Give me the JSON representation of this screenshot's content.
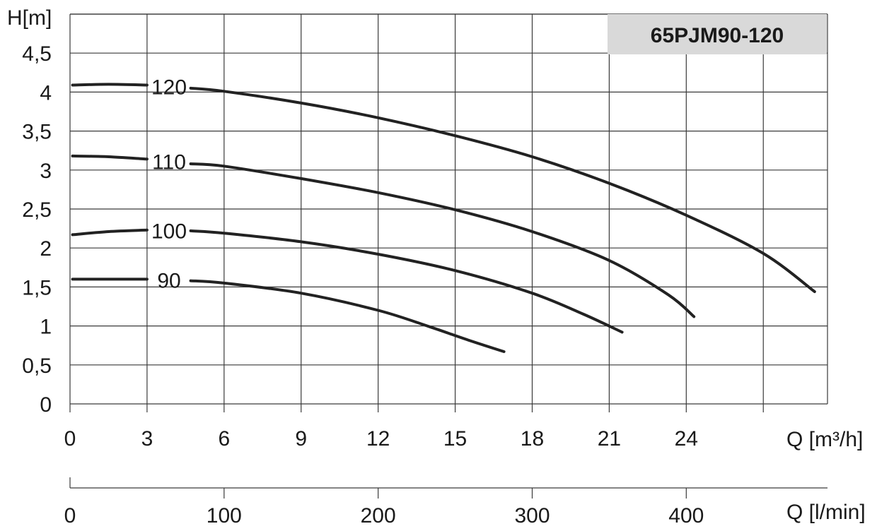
{
  "chart_data": {
    "type": "line",
    "title": "65PJM90-120",
    "ylabel": "H[m]",
    "xlabel": "Q [m³/h]",
    "xlabel_secondary": "Q [l/min]",
    "x_ticks": [
      0,
      3,
      6,
      9,
      12,
      15,
      18,
      21,
      24
    ],
    "y_ticks": [
      "0",
      "0,5",
      "1",
      "1,5",
      "2",
      "2,5",
      "3",
      "3,5",
      "4",
      "4,5"
    ],
    "secondary_x_ticks": [
      0,
      100,
      200,
      300,
      400
    ],
    "xlim": [
      0,
      29.5
    ],
    "ylim": [
      0,
      5
    ],
    "grid": true,
    "series": [
      {
        "name": "120",
        "x": [
          0.1,
          1.5,
          3.0,
          4.7,
          6,
          9,
          12,
          15,
          18,
          21,
          24,
          27,
          29.0
        ],
        "y": [
          4.09,
          4.1,
          4.09,
          4.05,
          4.01,
          3.86,
          3.67,
          3.44,
          3.17,
          2.83,
          2.42,
          1.93,
          1.44
        ]
      },
      {
        "name": "110",
        "x": [
          0.1,
          1.5,
          3.0,
          4.7,
          6,
          9,
          12,
          15,
          18,
          21,
          23.3,
          24.3
        ],
        "y": [
          3.18,
          3.17,
          3.14,
          3.08,
          3.05,
          2.89,
          2.71,
          2.49,
          2.21,
          1.84,
          1.4,
          1.12
        ]
      },
      {
        "name": "100",
        "x": [
          0.1,
          1.5,
          3.0,
          4.7,
          6,
          9,
          12,
          15,
          18,
          20,
          21.5
        ],
        "y": [
          2.17,
          2.21,
          2.23,
          2.22,
          2.19,
          2.08,
          1.92,
          1.71,
          1.42,
          1.15,
          0.92
        ]
      },
      {
        "name": "90",
        "x": [
          0.1,
          1.5,
          3.0,
          4.7,
          6,
          9,
          12,
          14,
          15.5,
          16.9
        ],
        "y": [
          1.6,
          1.6,
          1.6,
          1.58,
          1.55,
          1.42,
          1.2,
          0.99,
          0.82,
          0.67
        ]
      }
    ],
    "curve_labels": [
      "120",
      "110",
      "100",
      "90"
    ],
    "colors": {
      "curve": "#222222",
      "grid": "#3a3a3a",
      "title_box": "#d9d9d9"
    }
  }
}
